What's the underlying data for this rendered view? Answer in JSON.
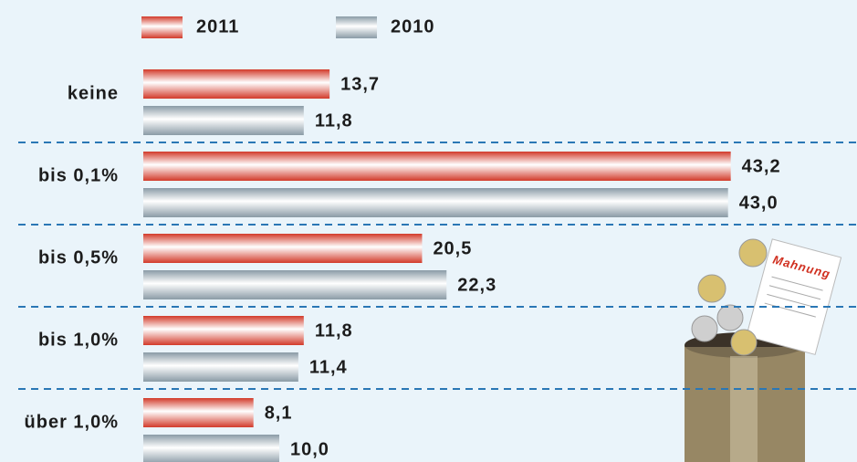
{
  "chart_data": {
    "type": "bar",
    "orientation": "horizontal",
    "categories": [
      "keine",
      "bis 0,1%",
      "bis 0,5%",
      "bis 1,0%",
      "über 1,0%"
    ],
    "series": [
      {
        "name": "2011",
        "color": "#d23a2a",
        "values": [
          13.7,
          43.2,
          20.5,
          11.8,
          8.1
        ],
        "value_labels": [
          "13,7",
          "43,2",
          "20,5",
          "11,8",
          "8,1"
        ]
      },
      {
        "name": "2010",
        "color": "#8a9ba6",
        "values": [
          11.8,
          43.0,
          22.3,
          11.4,
          10.0
        ],
        "value_labels": [
          "11,8",
          "43,0",
          "22,3",
          "11,4",
          "10,0"
        ]
      }
    ],
    "annotation": "Mahnung"
  }
}
